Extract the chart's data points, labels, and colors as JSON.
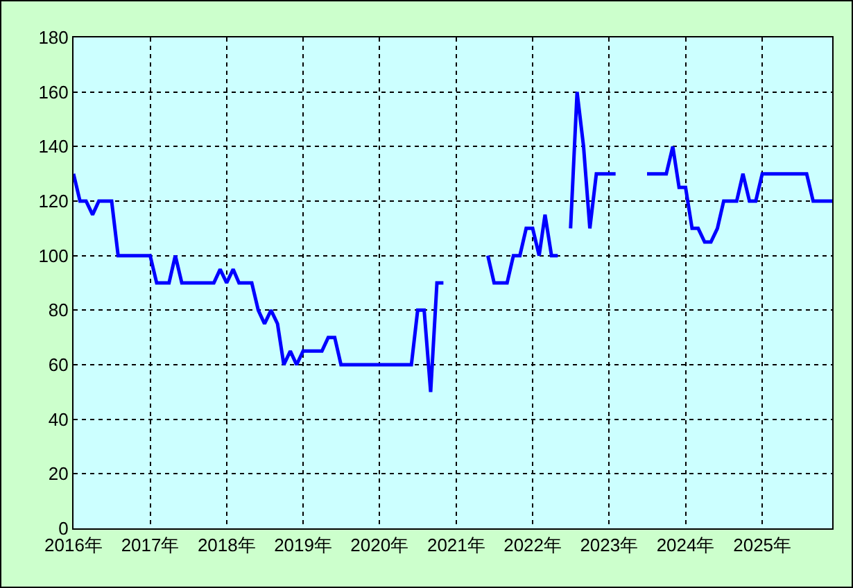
{
  "chart_data": {
    "type": "line",
    "x": [
      "2016-01",
      "2016-02",
      "2016-03",
      "2016-04",
      "2016-05",
      "2016-06",
      "2016-07",
      "2016-08",
      "2016-09",
      "2016-10",
      "2016-11",
      "2016-12",
      "2017-01",
      "2017-02",
      "2017-03",
      "2017-04",
      "2017-05",
      "2017-06",
      "2017-07",
      "2017-08",
      "2017-09",
      "2017-10",
      "2017-11",
      "2017-12",
      "2018-01",
      "2018-02",
      "2018-03",
      "2018-04",
      "2018-05",
      "2018-06",
      "2018-07",
      "2018-08",
      "2018-09",
      "2018-10",
      "2018-11",
      "2018-12",
      "2019-01",
      "2019-02",
      "2019-03",
      "2019-04",
      "2019-05",
      "2019-06",
      "2019-07",
      "2019-08",
      "2019-09",
      "2019-10",
      "2019-11",
      "2019-12",
      "2020-01",
      "2020-02",
      "2020-03",
      "2020-04",
      "2020-05",
      "2020-06",
      "2020-07",
      "2020-08",
      "2020-09",
      "2020-10",
      "2020-11",
      "2020-12",
      "2021-01",
      "2021-02",
      "2021-03",
      "2021-04",
      "2021-05",
      "2021-06",
      "2021-07",
      "2021-08",
      "2021-09",
      "2021-10",
      "2021-11",
      "2021-12",
      "2022-01",
      "2022-02",
      "2022-03",
      "2022-04",
      "2022-05",
      "2022-06",
      "2022-07",
      "2022-08",
      "2022-09",
      "2022-10",
      "2022-11",
      "2022-12",
      "2023-01",
      "2023-02",
      "2023-03",
      "2023-04",
      "2023-05",
      "2023-06",
      "2023-07",
      "2023-08",
      "2023-09",
      "2023-10",
      "2023-11",
      "2023-12",
      "2024-01",
      "2024-02",
      "2024-03",
      "2024-04",
      "2024-05",
      "2024-06",
      "2024-07",
      "2024-08",
      "2024-09",
      "2024-10",
      "2024-11",
      "2024-12",
      "2025-01",
      "2025-02",
      "2025-03",
      "2025-04",
      "2025-05",
      "2025-06",
      "2025-07",
      "2025-08",
      "2025-09",
      "2025-10",
      "2025-11",
      "2025-12"
    ],
    "series": [
      {
        "color": "#0000ff",
        "values": [
          130,
          120,
          120,
          115,
          120,
          120,
          120,
          100,
          100,
          100,
          100,
          100,
          100,
          90,
          90,
          90,
          100,
          90,
          90,
          90,
          90,
          90,
          90,
          95,
          90,
          95,
          90,
          90,
          90,
          80,
          75,
          80,
          75,
          60,
          65,
          60,
          65,
          65,
          65,
          65,
          70,
          70,
          60,
          60,
          60,
          60,
          60,
          60,
          60,
          60,
          60,
          60,
          60,
          60,
          80,
          80,
          50,
          90,
          90,
          null,
          null,
          null,
          null,
          null,
          null,
          100,
          90,
          90,
          90,
          100,
          100,
          110,
          110,
          100,
          115,
          100,
          100,
          null,
          110,
          160,
          140,
          110,
          130,
          130,
          130,
          130,
          null,
          null,
          null,
          null,
          130,
          130,
          130,
          130,
          140,
          125,
          125,
          110,
          110,
          105,
          105,
          110,
          120,
          120,
          120,
          130,
          120,
          120,
          130,
          130,
          130,
          130,
          130,
          130,
          130,
          130,
          120,
          120,
          120,
          120
        ]
      }
    ],
    "xlim": [
      "2016-01",
      "2025-12"
    ],
    "xticks": [
      {
        "value": "2016",
        "label": "2016年"
      },
      {
        "value": "2017",
        "label": "2017年"
      },
      {
        "value": "2018",
        "label": "2018年"
      },
      {
        "value": "2019",
        "label": "2019年"
      },
      {
        "value": "2020",
        "label": "2020年"
      },
      {
        "value": "2021",
        "label": "2021年"
      },
      {
        "value": "2022",
        "label": "2022年"
      },
      {
        "value": "2023",
        "label": "2023年"
      },
      {
        "value": "2024",
        "label": "2024年"
      },
      {
        "value": "2025",
        "label": "2025年"
      }
    ],
    "ylim": [
      0,
      180
    ],
    "yticks": [
      0,
      20,
      40,
      60,
      80,
      100,
      120,
      140,
      160,
      180
    ],
    "grid": true
  }
}
